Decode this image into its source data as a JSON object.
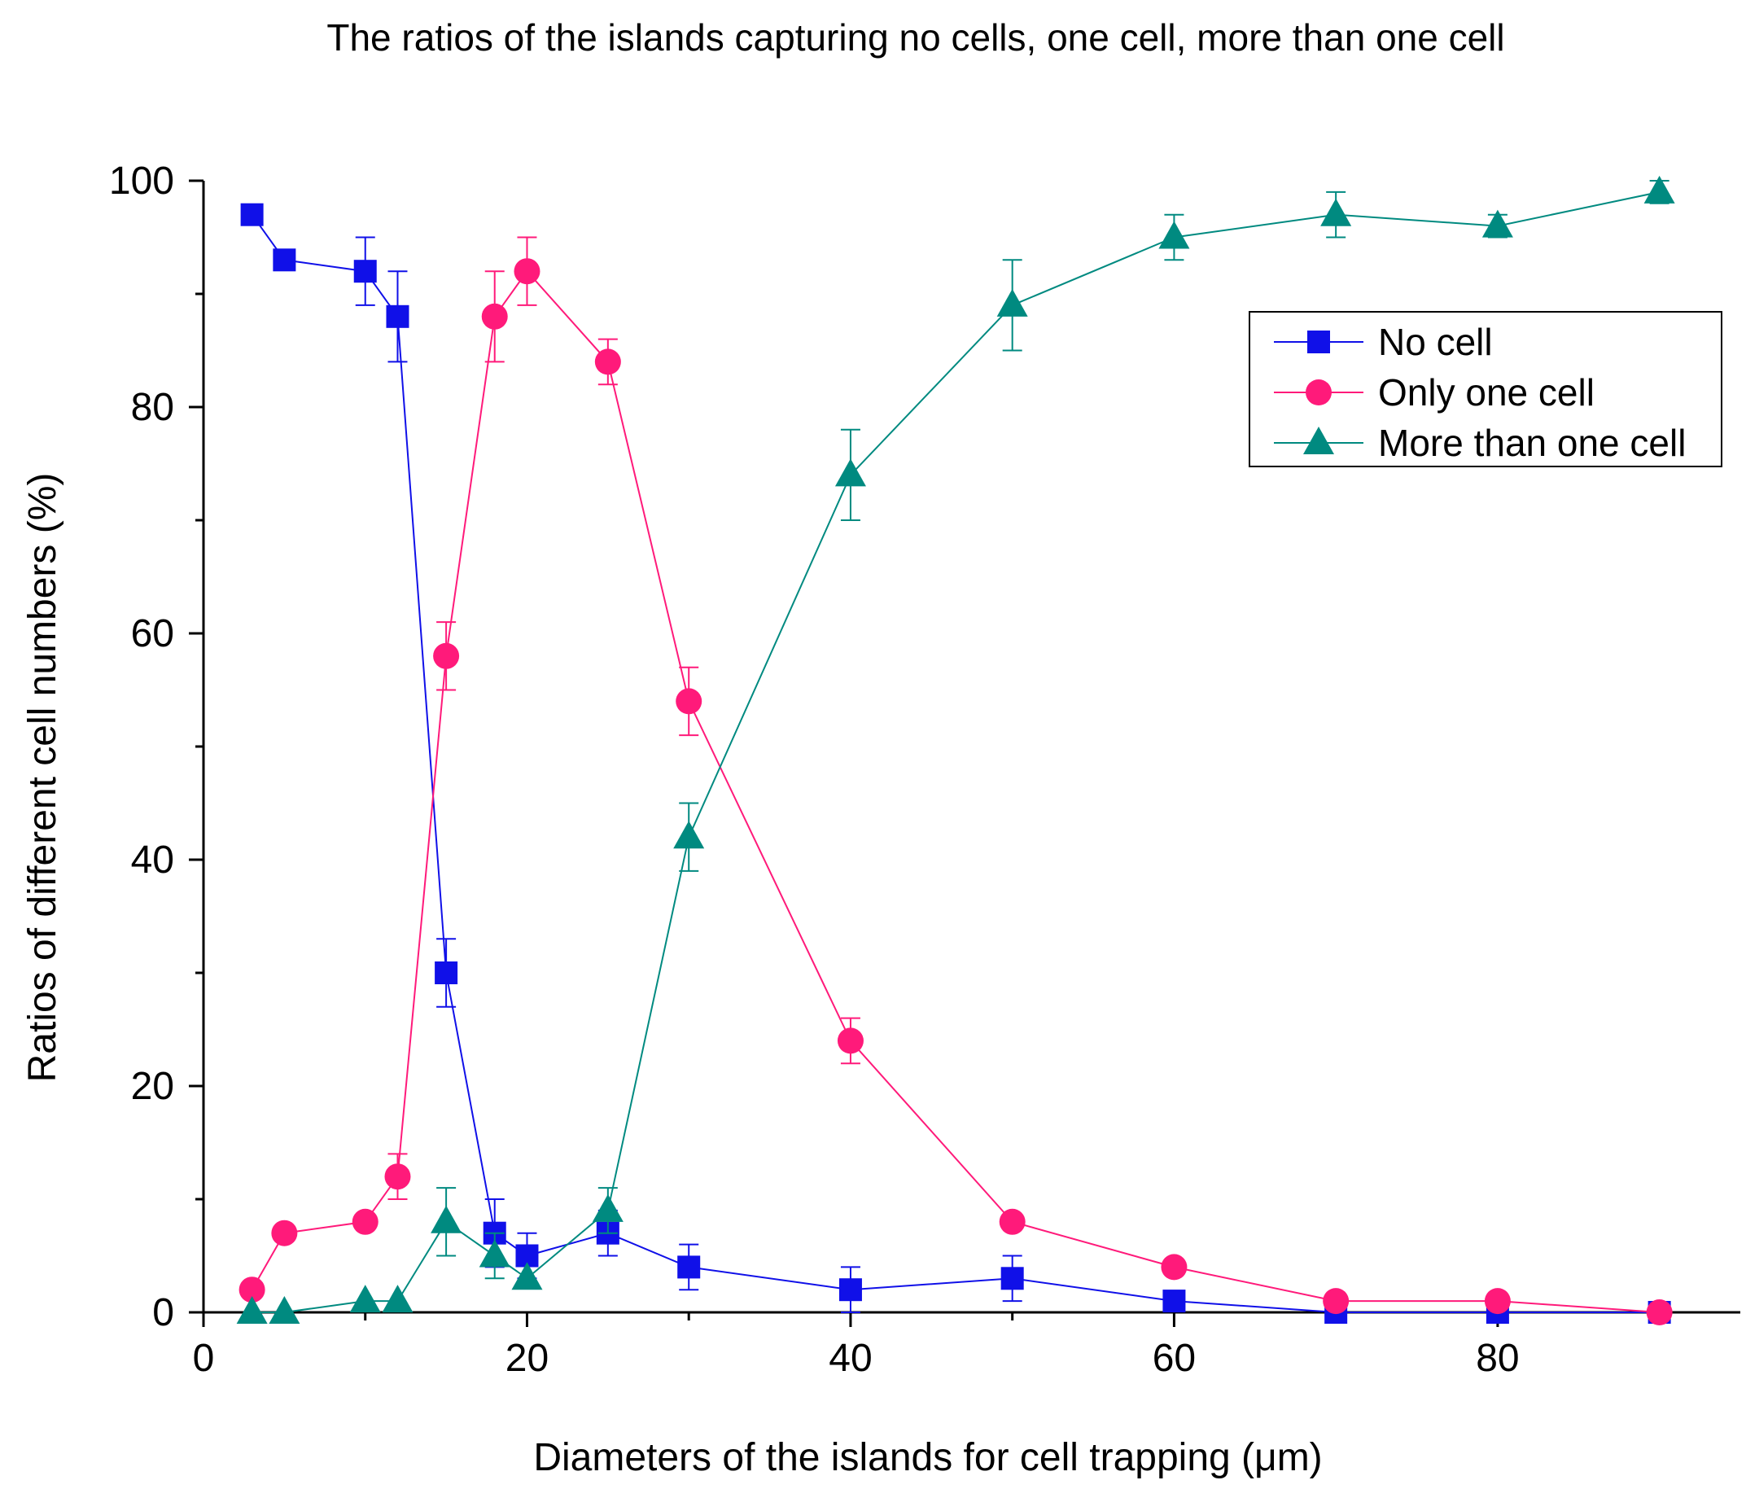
{
  "chart_data": {
    "type": "line",
    "title": "The ratios of the islands capturing no cells, one cell, more than one cell",
    "xlabel": "Diameters of the islands for cell trapping (μm)",
    "ylabel": "Ratios of different cell numbers (%)",
    "xlim": [
      0,
      95
    ],
    "ylim": [
      0,
      100
    ],
    "x_ticks": [
      0,
      20,
      40,
      60,
      80
    ],
    "y_ticks": [
      0,
      20,
      40,
      60,
      80,
      100
    ],
    "x_tick_labels": [
      "0",
      "20",
      "40",
      "60",
      "80"
    ],
    "y_tick_labels": [
      "0",
      "20",
      "40",
      "60",
      "80",
      "100"
    ],
    "x_minor_step": 10,
    "y_minor_step": 10,
    "legend_position": "top-right",
    "grid": false,
    "series": [
      {
        "name": "No cell",
        "color": "#1010e8",
        "marker": "square",
        "x": [
          3,
          5,
          10,
          12,
          15,
          18,
          20,
          25,
          30,
          40,
          50,
          60,
          70,
          80,
          90
        ],
        "y": [
          97,
          93,
          92,
          88,
          30,
          7,
          5,
          7,
          4,
          2,
          3,
          1,
          0,
          0,
          0
        ],
        "err": [
          0,
          0,
          3,
          4,
          3,
          3,
          2,
          2,
          2,
          2,
          2,
          0,
          0,
          0,
          0
        ]
      },
      {
        "name": "Only one cell",
        "color": "#ff1a7a",
        "marker": "circle",
        "x": [
          3,
          5,
          10,
          12,
          15,
          18,
          20,
          25,
          30,
          40,
          50,
          60,
          70,
          80,
          90
        ],
        "y": [
          2,
          7,
          8,
          12,
          58,
          88,
          92,
          84,
          54,
          24,
          8,
          4,
          1,
          1,
          0
        ],
        "err": [
          0,
          0,
          0,
          2,
          3,
          4,
          3,
          2,
          3,
          2,
          0,
          0,
          0,
          0,
          0
        ]
      },
      {
        "name": "More than one cell",
        "color": "#008a80",
        "marker": "triangle",
        "x": [
          3,
          5,
          10,
          12,
          15,
          18,
          20,
          25,
          30,
          40,
          50,
          60,
          70,
          80,
          90
        ],
        "y": [
          0,
          0,
          1,
          1,
          8,
          5,
          3,
          9,
          42,
          74,
          89,
          95,
          97,
          96,
          99
        ],
        "err": [
          0,
          0,
          0,
          0,
          3,
          2,
          0,
          2,
          3,
          4,
          4,
          2,
          2,
          1,
          1
        ]
      }
    ]
  }
}
